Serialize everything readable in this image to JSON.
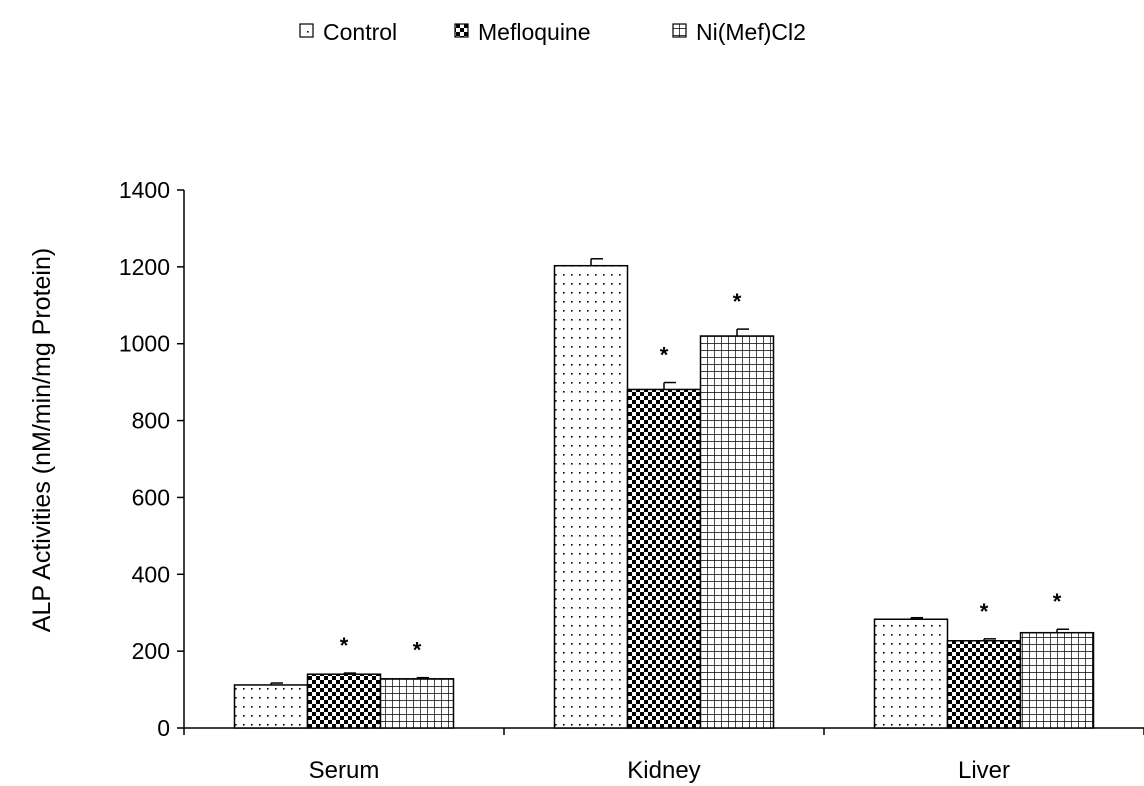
{
  "chart_data": {
    "type": "bar",
    "title": "",
    "xlabel": "",
    "ylabel": "ALP Activities (nM/min/mg Protein)",
    "ylim": [
      0,
      1400
    ],
    "yticks": [
      0,
      200,
      400,
      600,
      800,
      1000,
      1200,
      1400
    ],
    "grid": false,
    "legend_position": "top-center",
    "categories": [
      "Serum",
      "Kidney",
      "Liver"
    ],
    "series": [
      {
        "name": "Control",
        "pattern": "dots",
        "values": [
          112,
          1203,
          283
        ],
        "errors": [
          5,
          18,
          4
        ],
        "significant": [
          false,
          false,
          false
        ]
      },
      {
        "name": "Mefloquine",
        "pattern": "checker",
        "values": [
          140,
          881,
          227
        ],
        "errors": [
          3,
          18,
          5
        ],
        "significant": [
          true,
          true,
          true
        ]
      },
      {
        "name": "Ni(Mef)Cl2",
        "pattern": "grid",
        "values": [
          128,
          1020,
          248
        ],
        "errors": [
          3,
          18,
          9
        ],
        "significant": [
          true,
          true,
          true
        ]
      }
    ],
    "significance_marker": "*"
  }
}
